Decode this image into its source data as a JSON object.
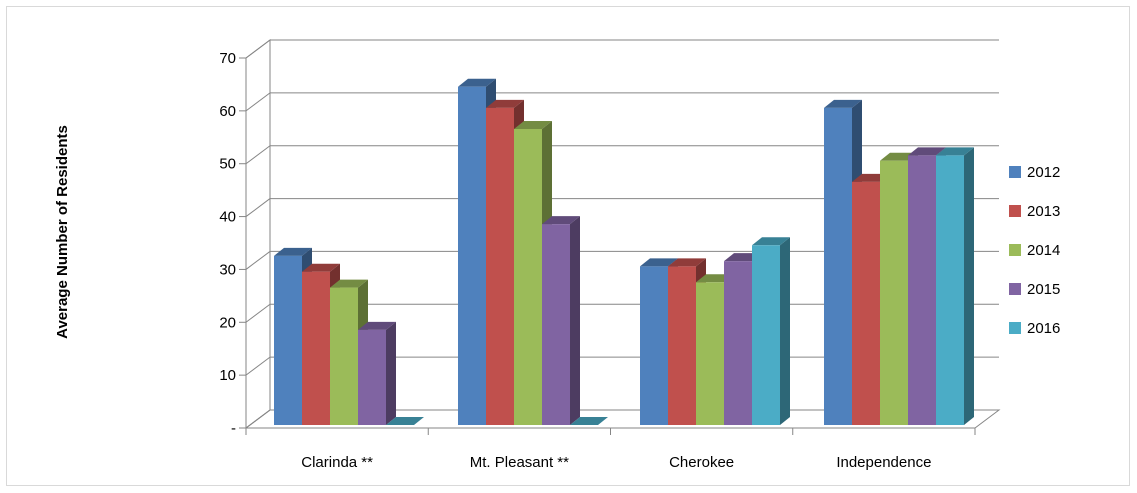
{
  "chart_data": {
    "type": "bar",
    "style": "3d-clustered-column",
    "title": "",
    "xlabel": "",
    "ylabel": "Average Number of Residents",
    "ylim": [
      0,
      70
    ],
    "yticks": [
      {
        "value": 0,
        "label": "-"
      },
      {
        "value": 10,
        "label": "10"
      },
      {
        "value": 20,
        "label": "20"
      },
      {
        "value": 30,
        "label": "30"
      },
      {
        "value": 40,
        "label": "40"
      },
      {
        "value": 50,
        "label": "50"
      },
      {
        "value": 60,
        "label": "60"
      },
      {
        "value": 70,
        "label": "70"
      }
    ],
    "grid": true,
    "legend_position": "right",
    "categories": [
      "Clarinda **",
      "Mt. Pleasant **",
      "Cherokee",
      "Independence"
    ],
    "series": [
      {
        "name": "2012",
        "color": "#4f81bd",
        "values": [
          32,
          64,
          30,
          60
        ]
      },
      {
        "name": "2013",
        "color": "#c0504d",
        "values": [
          29,
          60,
          30,
          46
        ]
      },
      {
        "name": "2014",
        "color": "#9bbb59",
        "values": [
          26,
          56,
          27,
          50
        ]
      },
      {
        "name": "2015",
        "color": "#8064a2",
        "values": [
          18,
          38,
          31,
          51
        ]
      },
      {
        "name": "2016",
        "color": "#4bacc6",
        "values": [
          0,
          0,
          34,
          51
        ]
      }
    ]
  }
}
